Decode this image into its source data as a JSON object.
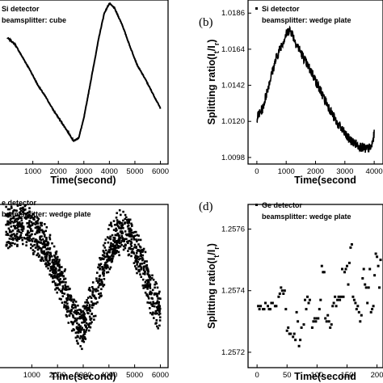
{
  "chart_data": [
    {
      "type": "line",
      "panel_label": "",
      "legend_lines": [
        "Si detector",
        "beamsplitter: cube"
      ],
      "xlabel": "Time(second)",
      "ylabel": "",
      "xlim": [
        -350,
        6300
      ],
      "ylim": [
        0,
        1
      ],
      "xticks": [
        "1000",
        "2000",
        "3000",
        "4000",
        "5000",
        "6000"
      ],
      "xtick_values": [
        1000,
        2000,
        3000,
        4000,
        5000,
        6000
      ],
      "yticks": [],
      "ytick_values": [],
      "series": [
        {
          "x": [
            0,
            300,
            600,
            900,
            1200,
            1500,
            1800,
            2100,
            2400,
            2600,
            2800,
            3000,
            3300,
            3600,
            3800,
            4000,
            4200,
            4500,
            4800,
            5100,
            5400,
            5700,
            6000
          ],
          "y": [
            0.77,
            0.73,
            0.65,
            0.57,
            0.48,
            0.41,
            0.33,
            0.26,
            0.19,
            0.14,
            0.16,
            0.28,
            0.53,
            0.78,
            0.92,
            0.98,
            0.95,
            0.85,
            0.72,
            0.6,
            0.52,
            0.43,
            0.34
          ]
        }
      ]
    },
    {
      "type": "line",
      "panel_label": "(b)",
      "legend_lines": [
        "Si detector",
        "beamsplitter: wedge plate"
      ],
      "xlabel": "Time(second",
      "ylabel": "Splitting ratio(I_t/I_r)",
      "xlim": [
        -300,
        4300
      ],
      "ylim": [
        1.0094,
        1.0194
      ],
      "xticks": [
        "0",
        "1000",
        "2000",
        "3000",
        "4000"
      ],
      "xtick_values": [
        0,
        1000,
        2000,
        3000,
        4000
      ],
      "yticks": [
        "1.0098",
        "1.0120",
        "1.0142",
        "1.0164",
        "1.0186"
      ],
      "ytick_values": [
        1.0098,
        1.012,
        1.0142,
        1.0164,
        1.0186
      ],
      "series": [
        {
          "x": [
            0,
            200,
            400,
            600,
            800,
            1000,
            1100,
            1200,
            1300,
            1500,
            1700,
            1900,
            2100,
            2300,
            2500,
            2700,
            2900,
            3100,
            3300,
            3500,
            3700,
            3900,
            4000
          ],
          "y": [
            1.0122,
            1.0128,
            1.0142,
            1.0155,
            1.0165,
            1.0173,
            1.0176,
            1.0174,
            1.0169,
            1.0162,
            1.0155,
            1.0149,
            1.0141,
            1.0134,
            1.0127,
            1.012,
            1.0115,
            1.011,
            1.0107,
            1.0105,
            1.0103,
            1.0104,
            1.0112
          ]
        }
      ]
    },
    {
      "type": "scatter",
      "panel_label": "",
      "legend_lines": [
        "e detector",
        "beamsplitter: wedge plate"
      ],
      "xlabel": "Time(second)",
      "ylabel": "",
      "xlim": [
        -300,
        6300
      ],
      "ylim": [
        0,
        1
      ],
      "xticks": [
        "1000",
        "2000",
        "3000",
        "4000",
        "5000",
        "6000"
      ],
      "xtick_values": [
        1000,
        2000,
        3000,
        4000,
        5000,
        6000
      ],
      "yticks": [],
      "ytick_values": [],
      "series": [
        {
          "x": [
            0,
            400,
            800,
            1200,
            1600,
            2000,
            2400,
            2800,
            3000,
            3200,
            3600,
            4000,
            4400,
            4800,
            5200,
            5600,
            6000
          ],
          "y": [
            0.85,
            0.88,
            0.87,
            0.82,
            0.72,
            0.58,
            0.42,
            0.25,
            0.25,
            0.33,
            0.52,
            0.73,
            0.83,
            0.8,
            0.68,
            0.48,
            0.32
          ]
        }
      ]
    },
    {
      "type": "scatter",
      "panel_label": "(d)",
      "legend_lines": [
        "Ge detector",
        "beamsplitter: wedge plate"
      ],
      "xlabel": "Time(second",
      "ylabel": "Splitting ratio(I_t/I_r)",
      "xlim": [
        -15,
        210
      ],
      "ylim": [
        1.25715,
        1.25768
      ],
      "xticks": [
        "0",
        "50",
        "100",
        "150",
        "200"
      ],
      "xtick_values": [
        0,
        50,
        100,
        150,
        200
      ],
      "yticks": [
        "1.2572",
        "1.2574",
        "1.2576"
      ],
      "ytick_values": [
        1.2572,
        1.2574,
        1.2576
      ],
      "series": [
        {
          "x": [
            2,
            4,
            6,
            10,
            12,
            14,
            18,
            20,
            22,
            24,
            26,
            30,
            32,
            36,
            38,
            40,
            42,
            44,
            46,
            48,
            50,
            52,
            54,
            56,
            60,
            62,
            64,
            66,
            68,
            70,
            72,
            74,
            78,
            80,
            82,
            84,
            86,
            88,
            92,
            94,
            96,
            98,
            100,
            102,
            104,
            106,
            108,
            110,
            112,
            114,
            116,
            118,
            120,
            122,
            124,
            126,
            128,
            130,
            132,
            134,
            136,
            138,
            140,
            142,
            144,
            146,
            148,
            150,
            152,
            154,
            156,
            158,
            160,
            162,
            164,
            166,
            168,
            170,
            172,
            174,
            176,
            178,
            180,
            182,
            184,
            186,
            188,
            190,
            192,
            194,
            196,
            198,
            200,
            202,
            204,
            206
          ],
          "y": [
            1.25735,
            1.25734,
            1.25735,
            1.25734,
            1.25734,
            1.25736,
            1.25735,
            1.25734,
            1.25734,
            1.25736,
            1.25736,
            1.25735,
            1.25735,
            1.25738,
            1.25739,
            1.25741,
            1.2574,
            1.25739,
            1.2574,
            1.25734,
            1.25727,
            1.25728,
            1.25726,
            1.25726,
            1.25725,
            1.25726,
            1.25724,
            1.25733,
            1.2573,
            1.25722,
            1.25724,
            1.25728,
            1.25729,
            1.25737,
            1.25734,
            1.25738,
            1.25736,
            1.25737,
            1.25728,
            1.2573,
            1.25731,
            1.2573,
            1.25731,
            1.25731,
            1.25734,
            1.25737,
            1.25748,
            1.25746,
            1.25746,
            1.25731,
            1.2573,
            1.25732,
            1.2573,
            1.25728,
            1.25729,
            1.25735,
            1.25736,
            1.25738,
            1.25735,
            1.25737,
            1.25738,
            1.25737,
            1.25738,
            1.25747,
            1.25738,
            1.25746,
            1.25747,
            1.25748,
            1.25742,
            1.25749,
            1.25754,
            1.25755,
            1.25738,
            1.25737,
            1.25736,
            1.25734,
            1.25735,
            1.25733,
            1.2573,
            1.25732,
            1.25744,
            1.25747,
            1.25742,
            1.25741,
            1.25736,
            1.25741,
            1.25747,
            1.25733,
            1.25734,
            1.25735,
            1.25745,
            1.25752,
            1.25751,
            1.25748,
            1.25741,
            1.2575
          ]
        }
      ]
    }
  ]
}
